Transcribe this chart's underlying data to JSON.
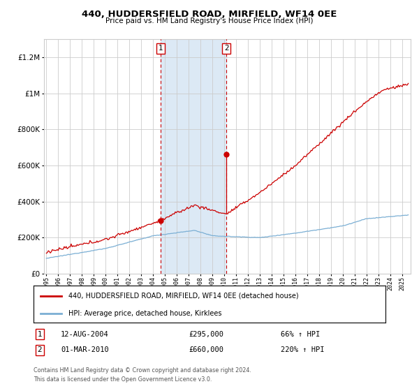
{
  "title": "440, HUDDERSFIELD ROAD, MIRFIELD, WF14 0EE",
  "subtitle": "Price paid vs. HM Land Registry's House Price Index (HPI)",
  "legend_line1": "440, HUDDERSFIELD ROAD, MIRFIELD, WF14 0EE (detached house)",
  "legend_line2": "HPI: Average price, detached house, Kirklees",
  "table_rows": [
    {
      "num": "1",
      "date": "12-AUG-2004",
      "price": "£295,000",
      "hpi": "66% ↑ HPI"
    },
    {
      "num": "2",
      "date": "01-MAR-2010",
      "price": "£660,000",
      "hpi": "220% ↑ HPI"
    }
  ],
  "footnote1": "Contains HM Land Registry data © Crown copyright and database right 2024.",
  "footnote2": "This data is licensed under the Open Government Licence v3.0.",
  "red_color": "#cc0000",
  "blue_color": "#7bafd4",
  "shade_color": "#dce9f5",
  "grid_color": "#cccccc",
  "bg_color": "#ffffff",
  "marker1_year": 2004.617,
  "marker1_value": 295000,
  "marker2_year": 2010.167,
  "marker2_value": 660000,
  "shade_x1": 2004.617,
  "shade_x2": 2010.167,
  "ylim": [
    0,
    1300000
  ],
  "xlim_start": 1994.8,
  "xlim_end": 2025.7
}
